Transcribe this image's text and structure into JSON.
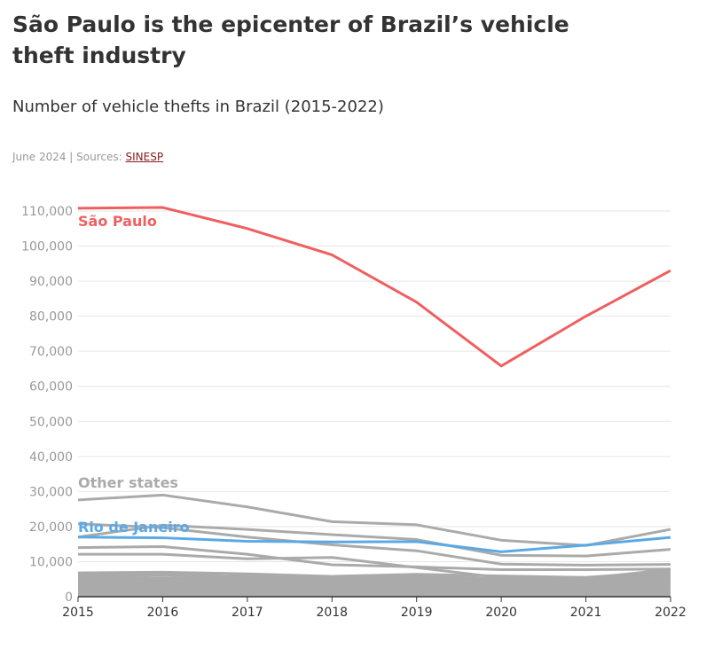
{
  "header": {
    "title": "São Paulo is the epicenter of Brazil’s vehicle theft industry",
    "subtitle": "Number of vehicle thefts in Brazil (2015-2022)",
    "source_prefix": "June 2024 | Sources: ",
    "source_link": "SINESP"
  },
  "chart_data": {
    "type": "line",
    "title": "Number of vehicle thefts in Brazil (2015-2022)",
    "x": [
      2015,
      2016,
      2017,
      2018,
      2019,
      2020,
      2021,
      2022
    ],
    "x_tick_labels": [
      "2015",
      "2016",
      "2017",
      "2018",
      "2019",
      "2020",
      "2021",
      "2022"
    ],
    "ylim": [
      0,
      110000
    ],
    "y_ticks": [
      0,
      10000,
      20000,
      30000,
      40000,
      50000,
      60000,
      70000,
      80000,
      90000,
      100000,
      110000
    ],
    "y_tick_labels": [
      "0",
      "10,000",
      "20,000",
      "30,000",
      "40,000",
      "50,000",
      "60,000",
      "70,000",
      "80,000",
      "90,000",
      "100,000",
      "110,000"
    ],
    "grid": true,
    "highlight_series": [
      {
        "name": "São Paulo",
        "label": "São Paulo",
        "color": "#f05f5f",
        "values": [
          110800,
          111000,
          105000,
          97500,
          84000,
          65800,
          80000,
          93000
        ]
      },
      {
        "name": "Rio de Janeiro",
        "label": "Rio de Janeiro",
        "color": "#5aa9e6",
        "values": [
          17000,
          16800,
          15800,
          15600,
          15700,
          12800,
          14700,
          16900
        ]
      }
    ],
    "other_states_label": "Other states",
    "other_states_color": "#aaaaaa",
    "other_series": [
      {
        "values": [
          27600,
          29000,
          25600,
          21400,
          20500,
          16100,
          14600,
          19200
        ]
      },
      {
        "values": [
          17000,
          20400,
          19200,
          17700,
          16300,
          11800,
          11600,
          13500
        ]
      },
      {
        "values": [
          20800,
          19700,
          17000,
          14800,
          13100,
          9300,
          9000,
          9200
        ]
      },
      {
        "values": [
          14000,
          14300,
          12100,
          9100,
          8500,
          7700,
          7700,
          7900
        ]
      },
      {
        "values": [
          12100,
          12100,
          10800,
          11200,
          8300,
          5400,
          5200,
          7800
        ]
      },
      {
        "values": [
          6800,
          7000,
          6500,
          5800,
          6400,
          5900,
          5500,
          7200
        ]
      },
      {
        "values": [
          6200,
          6600,
          5600,
          5300,
          5800,
          5100,
          5100,
          6800
        ]
      },
      {
        "values": [
          5500,
          6200,
          5200,
          5000,
          5100,
          4600,
          4700,
          6200
        ]
      },
      {
        "values": [
          5000,
          5400,
          4700,
          4600,
          4600,
          4300,
          4400,
          5700
        ]
      },
      {
        "values": [
          4500,
          4900,
          4300,
          4200,
          4100,
          3800,
          4000,
          5200
        ]
      },
      {
        "values": [
          4000,
          4300,
          3900,
          3800,
          3700,
          3400,
          3600,
          4600
        ]
      },
      {
        "values": [
          3500,
          3800,
          3400,
          3300,
          3200,
          3000,
          3200,
          4100
        ]
      },
      {
        "values": [
          3000,
          3300,
          3000,
          2900,
          2800,
          2600,
          2800,
          3600
        ]
      },
      {
        "values": [
          2500,
          2800,
          2500,
          2400,
          2400,
          2200,
          2400,
          3100
        ]
      },
      {
        "values": [
          2000,
          2200,
          2000,
          2000,
          1900,
          1800,
          1900,
          2500
        ]
      },
      {
        "values": [
          1500,
          1700,
          1500,
          1500,
          1400,
          1300,
          1400,
          1900
        ]
      },
      {
        "values": [
          1000,
          1100,
          1000,
          1000,
          1000,
          900,
          1000,
          1300
        ]
      },
      {
        "values": [
          600,
          700,
          600,
          600,
          600,
          500,
          600,
          800
        ]
      },
      {
        "values": [
          300,
          300,
          300,
          300,
          300,
          300,
          300,
          400
        ]
      },
      {
        "values": [
          4200,
          3600,
          4400,
          3000,
          4800,
          2900,
          3500,
          3900
        ]
      },
      {
        "values": [
          5800,
          4800,
          6200,
          4200,
          5300,
          3800,
          4900,
          5000
        ]
      },
      {
        "values": [
          2800,
          4000,
          2600,
          3600,
          2700,
          3200,
          2500,
          3300
        ]
      }
    ]
  }
}
